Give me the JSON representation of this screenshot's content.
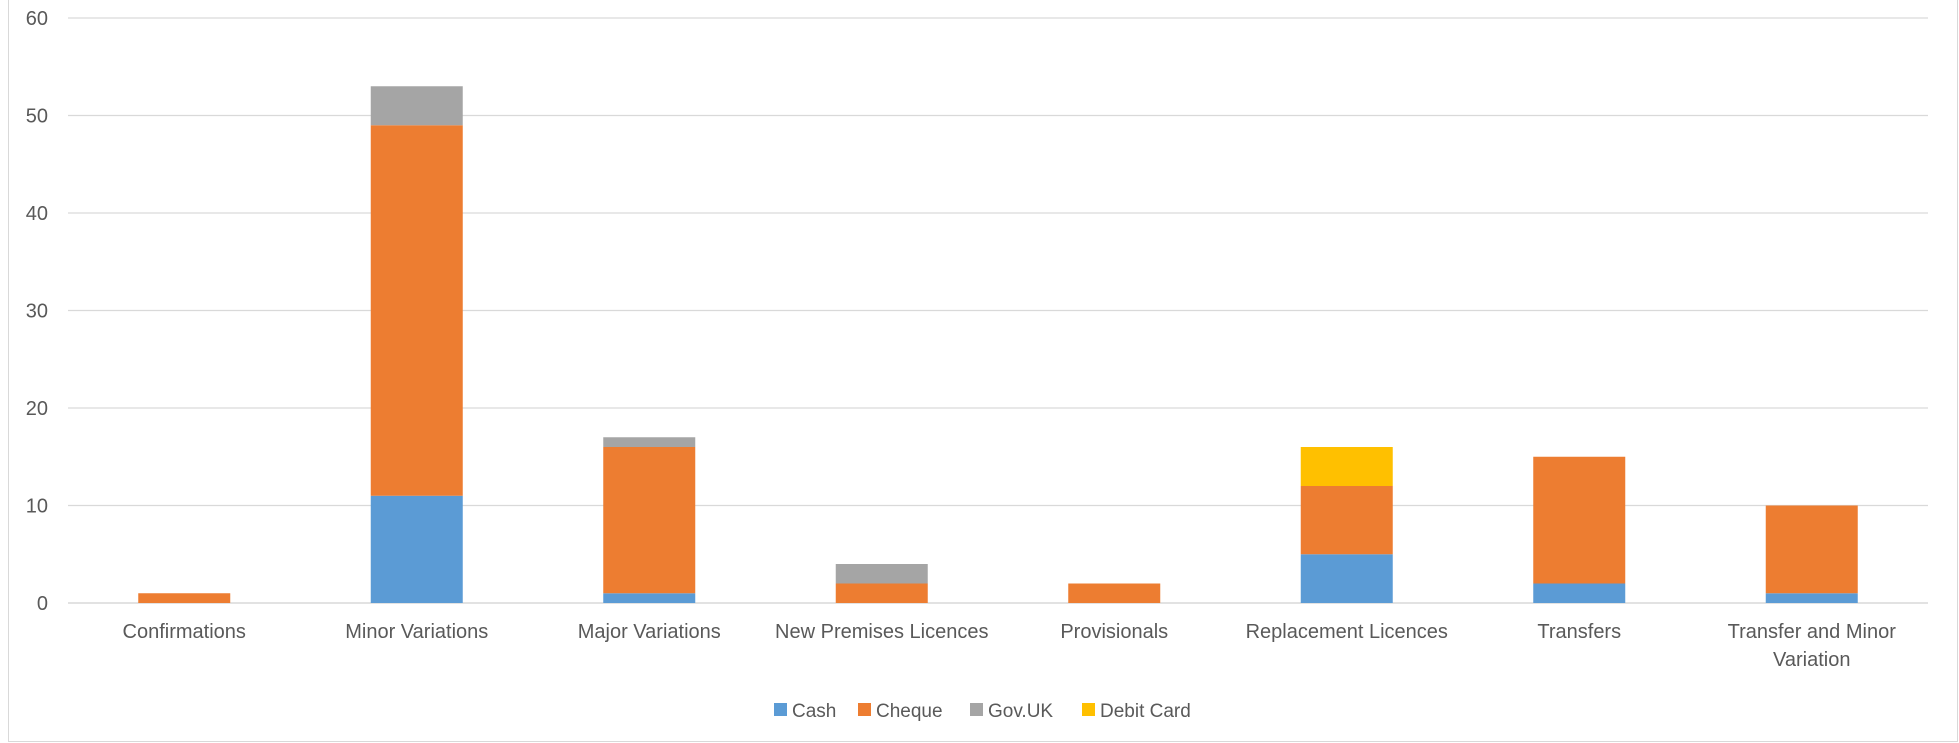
{
  "chart_data": {
    "type": "bar",
    "stacked": true,
    "categories": [
      "Confirmations",
      "Minor Variations",
      "Major Variations",
      "New Premises Licences",
      "Provisionals",
      "Replacement Licences",
      "Transfers",
      "Transfer and Minor Variation"
    ],
    "series": [
      {
        "name": "Cash",
        "color": "#5b9bd5",
        "values": [
          0,
          11,
          1,
          0,
          0,
          5,
          2,
          1
        ]
      },
      {
        "name": "Cheque",
        "color": "#ed7d31",
        "values": [
          1,
          38,
          15,
          2,
          2,
          7,
          13,
          9
        ]
      },
      {
        "name": "Gov.UK",
        "color": "#a5a5a5",
        "values": [
          0,
          4,
          1,
          2,
          0,
          0,
          0,
          0
        ]
      },
      {
        "name": "Debit Card",
        "color": "#ffc000",
        "values": [
          0,
          0,
          0,
          0,
          0,
          4,
          0,
          0
        ]
      }
    ],
    "yticks": [
      "0",
      "10",
      "20",
      "30",
      "40",
      "50",
      "60"
    ],
    "ylim": [
      0,
      60
    ],
    "grid": true,
    "legend": "bottom-center"
  }
}
